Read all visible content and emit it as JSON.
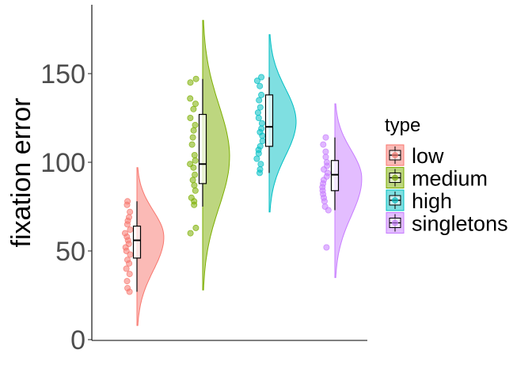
{
  "chart_data": {
    "type": "raincloud",
    "ylabel": "fixation error",
    "xlabel": "",
    "ylim": [
      0,
      188
    ],
    "yticks": [
      0,
      50,
      100,
      150
    ],
    "grid": false,
    "legend": {
      "title": "type",
      "position": "right"
    },
    "series": [
      {
        "name": "low",
        "color": "#F8766D",
        "box": {
          "whisker_low": 27,
          "q1": 46,
          "median": 56,
          "q3": 64,
          "whisker_high": 78
        },
        "density_range": [
          8,
          97
        ],
        "density_peak": 58,
        "points": [
          78,
          76,
          72,
          69,
          67,
          65,
          62,
          60,
          58,
          56,
          54,
          52,
          50,
          48,
          45,
          43,
          40,
          37,
          33,
          29,
          27
        ]
      },
      {
        "name": "medium",
        "color": "#7CAE00",
        "box": {
          "whisker_low": 75,
          "q1": 88,
          "median": 99,
          "q3": 127,
          "whisker_high": 147
        },
        "density_range": [
          28,
          180
        ],
        "density_peak": 103,
        "points": [
          147,
          145,
          136,
          133,
          130,
          125,
          121,
          118,
          114,
          110,
          104,
          101,
          99,
          97,
          93,
          90,
          87,
          84,
          80,
          78,
          76,
          63,
          60
        ]
      },
      {
        "name": "high",
        "color": "#00BFC4",
        "box": {
          "whisker_low": 94,
          "q1": 109,
          "median": 120,
          "q3": 138,
          "whisker_high": 148
        },
        "density_range": [
          72,
          172
        ],
        "density_peak": 123,
        "points": [
          148,
          146,
          143,
          138,
          135,
          131,
          128,
          125,
          122,
          119,
          117,
          115,
          112,
          109,
          107,
          105,
          102,
          99,
          96,
          94
        ]
      },
      {
        "name": "singletons",
        "color": "#C77CFF",
        "box": {
          "whisker_low": 73,
          "q1": 84,
          "median": 93,
          "q3": 101,
          "whisker_high": 114
        },
        "density_range": [
          35,
          133
        ],
        "density_peak": 91,
        "points": [
          114,
          110,
          106,
          103,
          100,
          98,
          96,
          94,
          92,
          90,
          88,
          86,
          84,
          82,
          80,
          78,
          75,
          73,
          52
        ]
      }
    ]
  }
}
